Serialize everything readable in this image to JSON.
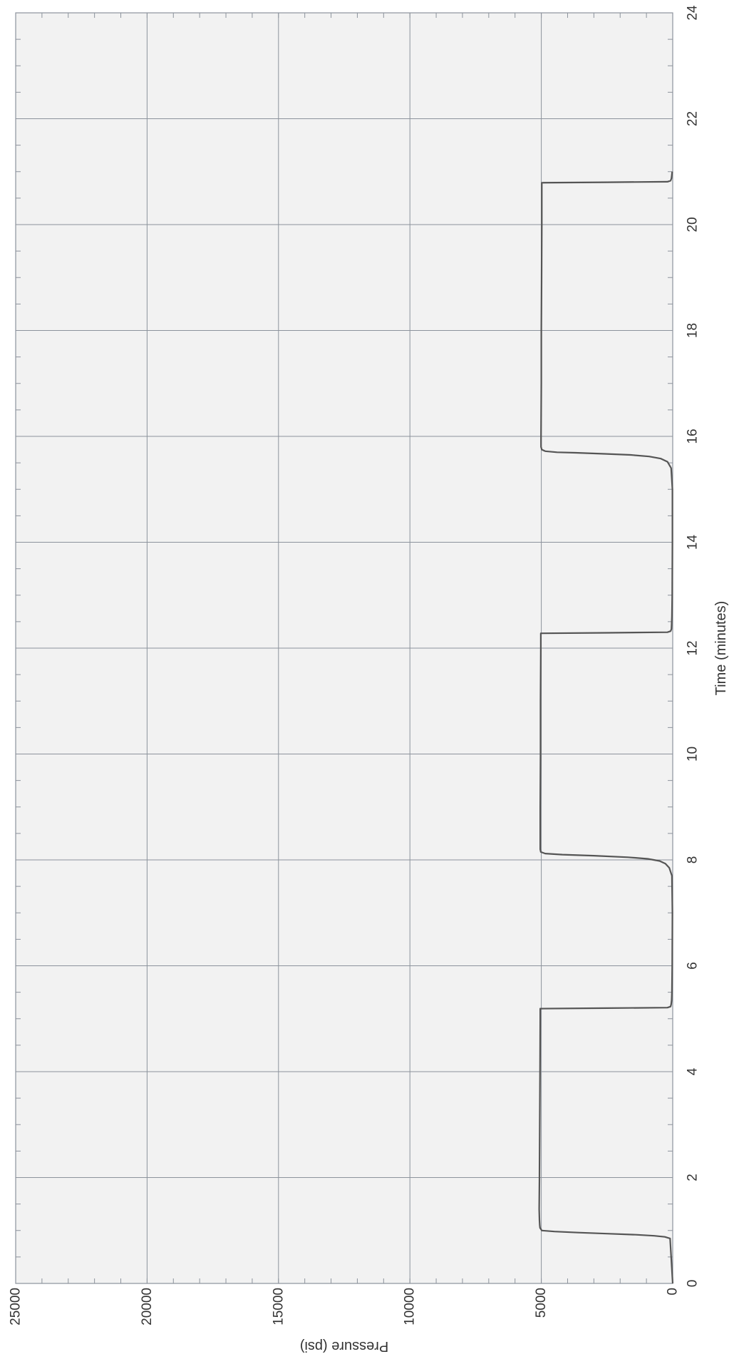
{
  "chart_data": {
    "type": "line",
    "orientation": "rotated-90-clockwise",
    "xlabel": "Time (minutes)",
    "ylabel": "Pressure (psi)",
    "xlim": [
      0,
      24
    ],
    "ylim": [
      0,
      25000
    ],
    "x_ticks": [
      0,
      2,
      4,
      6,
      8,
      10,
      12,
      14,
      16,
      18,
      20,
      22,
      24
    ],
    "y_ticks": [
      0,
      5000,
      10000,
      15000,
      20000,
      25000
    ],
    "x_tick_labels": [
      "0",
      "2",
      "4",
      "6",
      "8",
      "10",
      "12",
      "14",
      "16",
      "18",
      "20",
      "22",
      "24"
    ],
    "y_tick_labels": [
      "0",
      "5000",
      "10000",
      "15000",
      "20000",
      "25000"
    ],
    "grid": true,
    "minor_ticks": true,
    "colors": {
      "line": "#555555",
      "grid": "#8c939c",
      "background": "#f2f2f2",
      "text": "#333333"
    },
    "series": [
      {
        "x": [
          0,
          0.85,
          0.88,
          0.9,
          0.92,
          0.94,
          0.96,
          0.98,
          1.0,
          1.05,
          1.1,
          1.2,
          1.4,
          2.0,
          3.0,
          4.0,
          5.0,
          5.19,
          5.2,
          5.21,
          5.23,
          5.27,
          5.35,
          5.5,
          6.0,
          7.0,
          7.7,
          7.85,
          7.93,
          7.98,
          8.02,
          8.05,
          8.08,
          8.1,
          8.12,
          8.15,
          8.2,
          8.4,
          9.0,
          10.0,
          11.0,
          12.0,
          12.28,
          12.29,
          12.3,
          12.32,
          12.36,
          12.45,
          12.6,
          13.0,
          14.0,
          15.0,
          15.4,
          15.52,
          15.58,
          15.62,
          15.65,
          15.67,
          15.69,
          15.7,
          15.72,
          15.75,
          15.8,
          16.0,
          17.0,
          18.0,
          19.0,
          20.0,
          20.79,
          20.8,
          20.81,
          20.83,
          20.87,
          20.95,
          21.0
        ],
        "y": [
          0,
          100,
          300,
          700,
          1400,
          2500,
          3600,
          4500,
          4980,
          5050,
          5060,
          5070,
          5080,
          5070,
          5060,
          5050,
          5040,
          5040,
          2500,
          200,
          80,
          60,
          40,
          30,
          20,
          10,
          30,
          130,
          280,
          500,
          950,
          1700,
          3000,
          4200,
          4850,
          5020,
          5040,
          5040,
          5040,
          5030,
          5030,
          5020,
          5020,
          2500,
          200,
          80,
          50,
          40,
          30,
          20,
          10,
          10,
          60,
          200,
          450,
          900,
          1600,
          2600,
          3700,
          4400,
          4850,
          4980,
          5010,
          5010,
          5000,
          5000,
          4990,
          4980,
          4980,
          2500,
          200,
          80,
          50,
          30,
          20
        ]
      }
    ]
  }
}
